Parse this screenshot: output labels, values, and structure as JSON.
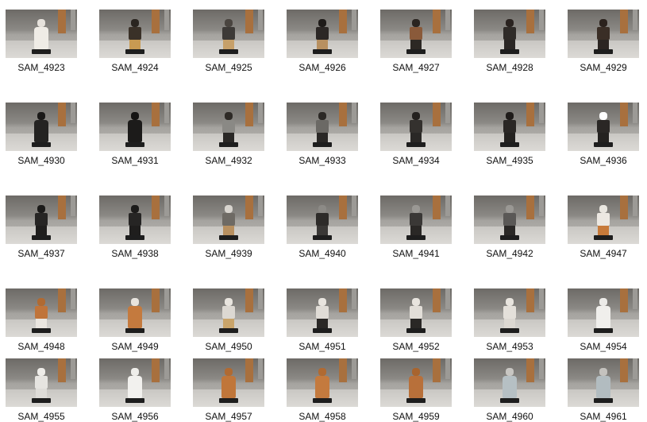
{
  "files": [
    {
      "name": "SAM_4923",
      "palette": {
        "head": "#e6e2dc",
        "body": "#efece6",
        "legs": "#e2ded8"
      },
      "robe": true
    },
    {
      "name": "SAM_4924",
      "palette": {
        "head": "#2a2520",
        "body": "#3a3128",
        "legs": "#c89a52"
      },
      "robe": false
    },
    {
      "name": "SAM_4925",
      "palette": {
        "head": "#4a4540",
        "body": "#3d3a37",
        "legs": "#c6a06a"
      },
      "robe": false
    },
    {
      "name": "SAM_4926",
      "palette": {
        "head": "#1e1b19",
        "body": "#2b2725",
        "legs": "#b89060"
      },
      "robe": false
    },
    {
      "name": "SAM_4927",
      "palette": {
        "head": "#2a2420",
        "body": "#8a5a3a",
        "legs": "#2c2824"
      },
      "robe": false
    },
    {
      "name": "SAM_4928",
      "palette": {
        "head": "#2a2320",
        "body": "#2f2b28",
        "legs": "#2a2624"
      },
      "robe": false
    },
    {
      "name": "SAM_4929",
      "palette": {
        "head": "#2b221d",
        "body": "#3a2e26",
        "legs": "#2b2522"
      },
      "robe": false
    },
    {
      "name": "SAM_4930",
      "palette": {
        "head": "#1a1918",
        "body": "#242322",
        "legs": "#1e1d1c"
      },
      "robe": true
    },
    {
      "name": "SAM_4931",
      "palette": {
        "head": "#151413",
        "body": "#1c1b1a",
        "legs": "#181716"
      },
      "robe": true
    },
    {
      "name": "SAM_4932",
      "palette": {
        "head": "#2e2a26",
        "body": "#8a8985",
        "legs": "#2a2826"
      },
      "robe": false
    },
    {
      "name": "SAM_4933",
      "palette": {
        "head": "#2c2926",
        "body": "#6b6965",
        "legs": "#2a2826"
      },
      "robe": false
    },
    {
      "name": "SAM_4934",
      "palette": {
        "head": "#24211f",
        "body": "#34312e",
        "legs": "#2a2826"
      },
      "robe": false
    },
    {
      "name": "SAM_4935",
      "palette": {
        "head": "#1f1c1a",
        "body": "#2a2725",
        "legs": "#242220"
      },
      "robe": false
    },
    {
      "name": "SAM_4936",
      "palette": {
        "head": "#ffffff",
        "body": "#2a2725",
        "legs": "#242220"
      },
      "robe": false
    },
    {
      "name": "SAM_4937",
      "palette": {
        "head": "#1b1a19",
        "body": "#262524",
        "legs": "#1f1e1d"
      },
      "robe": false
    },
    {
      "name": "SAM_4938",
      "palette": {
        "head": "#1c1b1a",
        "body": "#262524",
        "legs": "#1f1e1d"
      },
      "robe": false
    },
    {
      "name": "SAM_4939",
      "palette": {
        "head": "#d8d4ce",
        "body": "#6e6a64",
        "legs": "#b89060"
      },
      "robe": false
    },
    {
      "name": "SAM_4940",
      "palette": {
        "head": "#8c8a86",
        "body": "#2d2b29",
        "legs": "#3a3836"
      },
      "robe": false
    },
    {
      "name": "SAM_4941",
      "palette": {
        "head": "#9a9894",
        "body": "#3a3836",
        "legs": "#2a2826"
      },
      "robe": false
    },
    {
      "name": "SAM_4942",
      "palette": {
        "head": "#9a9894",
        "body": "#5a5856",
        "legs": "#2a2826"
      },
      "robe": false
    },
    {
      "name": "SAM_4947",
      "palette": {
        "head": "#e9e6e0",
        "body": "#ece8e2",
        "legs": "#c77a3a"
      },
      "robe": false
    },
    {
      "name": "SAM_4948",
      "palette": {
        "head": "#b06a32",
        "body": "#c0743a",
        "legs": "#eae6e0"
      },
      "robe": false
    },
    {
      "name": "SAM_4949",
      "palette": {
        "head": "#e8e4de",
        "body": "#c47a3e",
        "legs": "#b8703a"
      },
      "robe": true
    },
    {
      "name": "SAM_4950",
      "palette": {
        "head": "#e8e4de",
        "body": "#dcd8d2",
        "legs": "#c9a46a"
      },
      "robe": false
    },
    {
      "name": "SAM_4951",
      "palette": {
        "head": "#e8e4de",
        "body": "#e0dcd6",
        "legs": "#2a2826"
      },
      "robe": false
    },
    {
      "name": "SAM_4952",
      "palette": {
        "head": "#e8e4de",
        "body": "#e2ded8",
        "legs": "#2a2826"
      },
      "robe": false
    },
    {
      "name": "SAM_4953",
      "palette": {
        "head": "#e8e4de",
        "body": "#e4e0da",
        "legs": "#dcd8d2"
      },
      "robe": false
    },
    {
      "name": "SAM_4954",
      "palette": {
        "head": "#ecebe8",
        "body": "#f0efec",
        "legs": "#e6e5e2"
      },
      "robe": true
    },
    {
      "name": "SAM_4955",
      "palette": {
        "head": "#eeece8",
        "body": "#e6e4e0",
        "legs": "#dedcd8"
      },
      "robe": false
    },
    {
      "name": "SAM_4956",
      "palette": {
        "head": "#efeeea",
        "body": "#f2f1ee",
        "legs": "#eceae6"
      },
      "robe": true
    },
    {
      "name": "SAM_4957",
      "palette": {
        "head": "#b06a32",
        "body": "#c0763a",
        "legs": "#b06a32"
      },
      "robe": true
    },
    {
      "name": "SAM_4958",
      "palette": {
        "head": "#b06a32",
        "body": "#c47a3e",
        "legs": "#b06a32"
      },
      "robe": true
    },
    {
      "name": "SAM_4959",
      "palette": {
        "head": "#a8642e",
        "body": "#b8703a",
        "legs": "#a8642e"
      },
      "robe": true
    },
    {
      "name": "SAM_4960",
      "palette": {
        "head": "#c8c6c2",
        "body": "#b6c0c4",
        "legs": "#aab4b8"
      },
      "robe": true
    },
    {
      "name": "SAM_4961",
      "palette": {
        "head": "#c4c2be",
        "body": "#b2bcc0",
        "legs": "#a8b2b6"
      },
      "robe": true
    }
  ]
}
